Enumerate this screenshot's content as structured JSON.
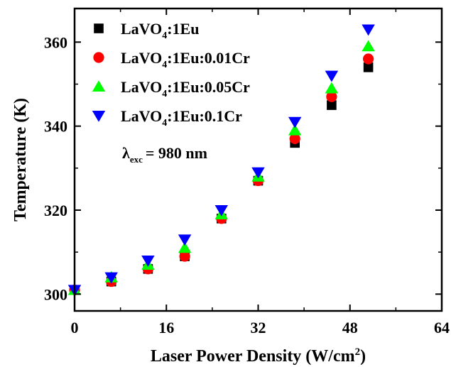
{
  "chart_data": {
    "type": "scatter",
    "xlabel": "Laser Power Density (W/cm",
    "xlabel_sup": "2",
    "xlabel_tail": ")",
    "ylabel": "Temperature (K)",
    "xlim": [
      0,
      64
    ],
    "ylim": [
      296,
      368
    ],
    "xticks": [
      0,
      16,
      32,
      48,
      64
    ],
    "xtick_labels": [
      "0",
      "16",
      "32",
      "48",
      "64"
    ],
    "yticks": [
      300,
      320,
      340,
      360
    ],
    "ytick_labels": [
      "300",
      "320",
      "340",
      "360"
    ],
    "grid": false,
    "legend_position": "top-left",
    "annotation": {
      "lambda": "λ",
      "subscript": "exc",
      "text": "= 980 nm"
    },
    "x": [
      0,
      6.4,
      12.8,
      19.2,
      25.6,
      32,
      38.4,
      44.8,
      51.2
    ],
    "series": [
      {
        "name_parts": [
          "LaVO",
          "4",
          ":1Eu"
        ],
        "marker": "square",
        "color": "#000000",
        "values": [
          301,
          303,
          306,
          309,
          318,
          327,
          336,
          345,
          354
        ]
      },
      {
        "name_parts": [
          "LaVO",
          "4",
          ":1Eu:0.01Cr"
        ],
        "marker": "circle",
        "color": "#ff0000",
        "values": [
          301,
          303,
          306,
          309,
          318,
          327,
          337,
          347,
          356
        ]
      },
      {
        "name_parts": [
          "LaVO",
          "4",
          ":1Eu:0.05Cr"
        ],
        "marker": "triangle-up",
        "color": "#00ff00",
        "values": [
          301,
          304,
          307,
          311,
          319,
          328,
          339,
          349,
          359
        ]
      },
      {
        "name_parts": [
          "LaVO",
          "4",
          ":1Eu:0.1Cr"
        ],
        "marker": "triangle-down",
        "color": "#0000ff",
        "values": [
          301,
          304,
          308,
          313,
          320,
          329,
          341,
          352,
          363
        ]
      }
    ]
  }
}
